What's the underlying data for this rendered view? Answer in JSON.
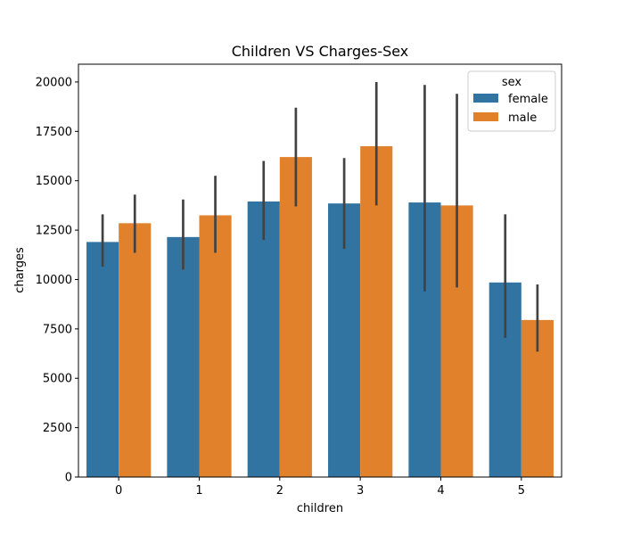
{
  "chart_data": {
    "type": "bar",
    "title": "Children VS Charges-Sex",
    "xlabel": "children",
    "ylabel": "charges",
    "categories": [
      "0",
      "1",
      "2",
      "3",
      "4",
      "5"
    ],
    "ylim": [
      0,
      20900
    ],
    "yticks": [
      0,
      2500,
      5000,
      7500,
      10000,
      12500,
      15000,
      17500,
      20000
    ],
    "grid": false,
    "legend": {
      "title": "sex",
      "placement": "top-right"
    },
    "series": [
      {
        "name": "female",
        "color": "#3274a1",
        "values": [
          11900,
          12150,
          13950,
          13850,
          13900,
          9850
        ],
        "ci_low": [
          10650,
          10500,
          12000,
          11550,
          9400,
          7050
        ],
        "ci_high": [
          13300,
          14050,
          16000,
          16150,
          19850,
          13300
        ]
      },
      {
        "name": "male",
        "color": "#e1812c",
        "values": [
          12850,
          13250,
          16200,
          16750,
          13750,
          7950
        ],
        "ci_low": [
          11350,
          11350,
          13700,
          13750,
          9600,
          6350
        ],
        "ci_high": [
          14300,
          15250,
          18700,
          20000,
          19400,
          9750
        ]
      }
    ]
  }
}
